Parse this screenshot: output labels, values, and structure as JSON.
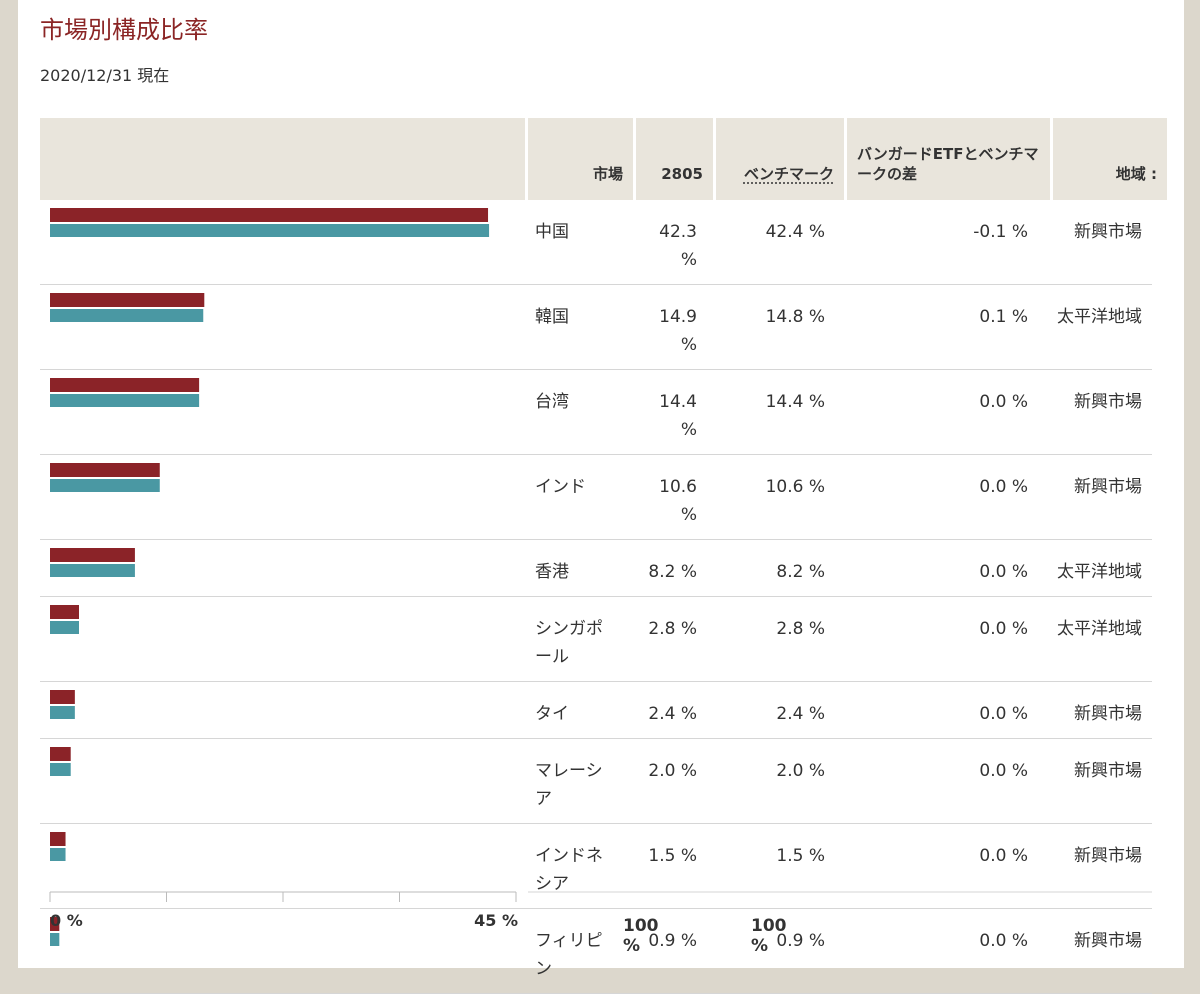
{
  "header": {
    "title": "市場別構成比率",
    "date": "2020/12/31 現在"
  },
  "table": {
    "columns": [
      "市場",
      "2805",
      "ベンチマーク",
      "バンガードETFとベンチマークの差",
      "地域 :"
    ],
    "rows": [
      {
        "market": "中国",
        "fund": {
          "value": 42.3,
          "label": "42.3 %"
        },
        "benchmark": {
          "value": 42.4,
          "label": "42.4 %"
        },
        "difference": "-0.1 %",
        "region": "新興市場"
      },
      {
        "market": "韓国",
        "fund": {
          "value": 14.9,
          "label": "14.9 %"
        },
        "benchmark": {
          "value": 14.8,
          "label": "14.8 %"
        },
        "difference": "0.1 %",
        "region": "太平洋地域"
      },
      {
        "market": "台湾",
        "fund": {
          "value": 14.4,
          "label": "14.4 %"
        },
        "benchmark": {
          "value": 14.4,
          "label": "14.4 %"
        },
        "difference": "0.0 %",
        "region": "新興市場"
      },
      {
        "market": "インド",
        "fund": {
          "value": 10.6,
          "label": "10.6 %"
        },
        "benchmark": {
          "value": 10.6,
          "label": "10.6 %"
        },
        "difference": "0.0 %",
        "region": "新興市場"
      },
      {
        "market": "香港",
        "fund": {
          "value": 8.2,
          "label": "8.2 %"
        },
        "benchmark": {
          "value": 8.2,
          "label": "8.2 %"
        },
        "difference": "0.0 %",
        "region": "太平洋地域"
      },
      {
        "market": "シンガポール",
        "fund": {
          "value": 2.8,
          "label": "2.8 %"
        },
        "benchmark": {
          "value": 2.8,
          "label": "2.8 %"
        },
        "difference": "0.0 %",
        "region": "太平洋地域"
      },
      {
        "market": "タイ",
        "fund": {
          "value": 2.4,
          "label": "2.4 %"
        },
        "benchmark": {
          "value": 2.4,
          "label": "2.4 %"
        },
        "difference": "0.0 %",
        "region": "新興市場"
      },
      {
        "market": "マレーシア",
        "fund": {
          "value": 2.0,
          "label": "2.0 %"
        },
        "benchmark": {
          "value": 2.0,
          "label": "2.0 %"
        },
        "difference": "0.0 %",
        "region": "新興市場"
      },
      {
        "market": "インドネシア",
        "fund": {
          "value": 1.5,
          "label": "1.5 %"
        },
        "benchmark": {
          "value": 1.5,
          "label": "1.5 %"
        },
        "difference": "0.0 %",
        "region": "新興市場"
      },
      {
        "market": "フィリピン",
        "fund": {
          "value": 0.9,
          "label": "0.9 %"
        },
        "benchmark": {
          "value": 0.9,
          "label": "0.9 %"
        },
        "difference": "0.0 %",
        "region": "新興市場"
      }
    ],
    "totals": [
      "100 %",
      "100 %"
    ]
  },
  "bar_axis": {
    "xlim": [
      0,
      45
    ],
    "xticks": [
      {
        "value": 0,
        "label": "0 %"
      },
      {
        "value": 11.25,
        "label": null
      },
      {
        "value": 22.5,
        "label": null
      },
      {
        "value": 33.75,
        "label": null
      },
      {
        "value": 45,
        "label": "45 %"
      }
    ],
    "colors": {
      "fund": "#8b2328",
      "benchmark": "#4a98a3"
    }
  }
}
